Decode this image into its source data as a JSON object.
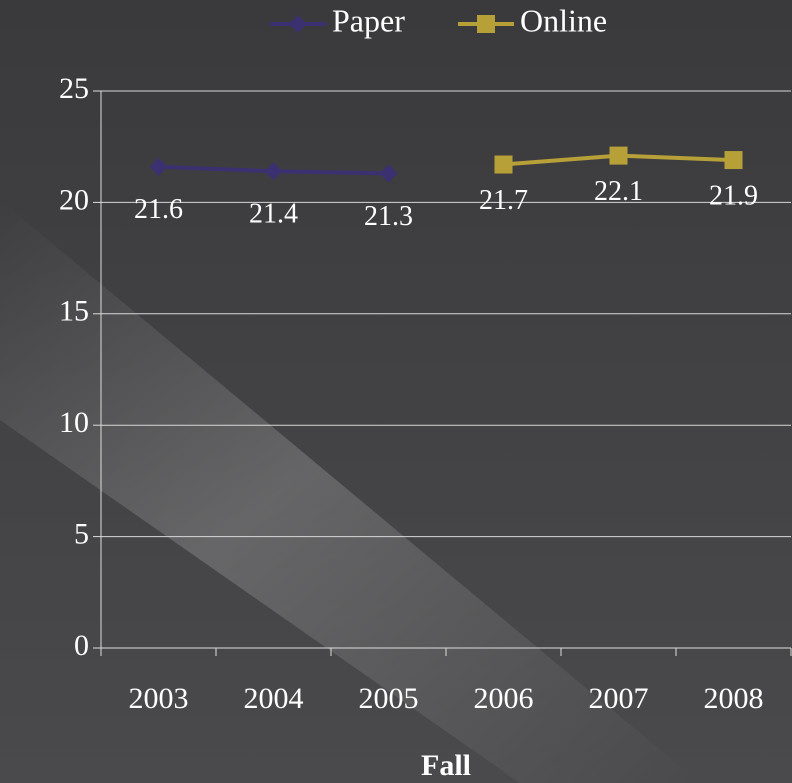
{
  "chart_data": {
    "type": "line",
    "x_label": "Fall",
    "categories": [
      "2003",
      "2004",
      "2005",
      "2006",
      "2007",
      "2008"
    ],
    "series": [
      {
        "name": "Paper",
        "color": "#3b3170",
        "marker": "diamond",
        "values": [
          21.6,
          21.4,
          21.3,
          null,
          null,
          null
        ]
      },
      {
        "name": "Online",
        "color": "#b8a038",
        "marker": "square",
        "values": [
          null,
          null,
          null,
          21.7,
          22.1,
          21.9
        ]
      }
    ],
    "ylim": [
      0,
      25
    ],
    "yticks": [
      0,
      5,
      10,
      15,
      20,
      25
    ],
    "grid": true,
    "legend": "top",
    "data_labels": true
  }
}
